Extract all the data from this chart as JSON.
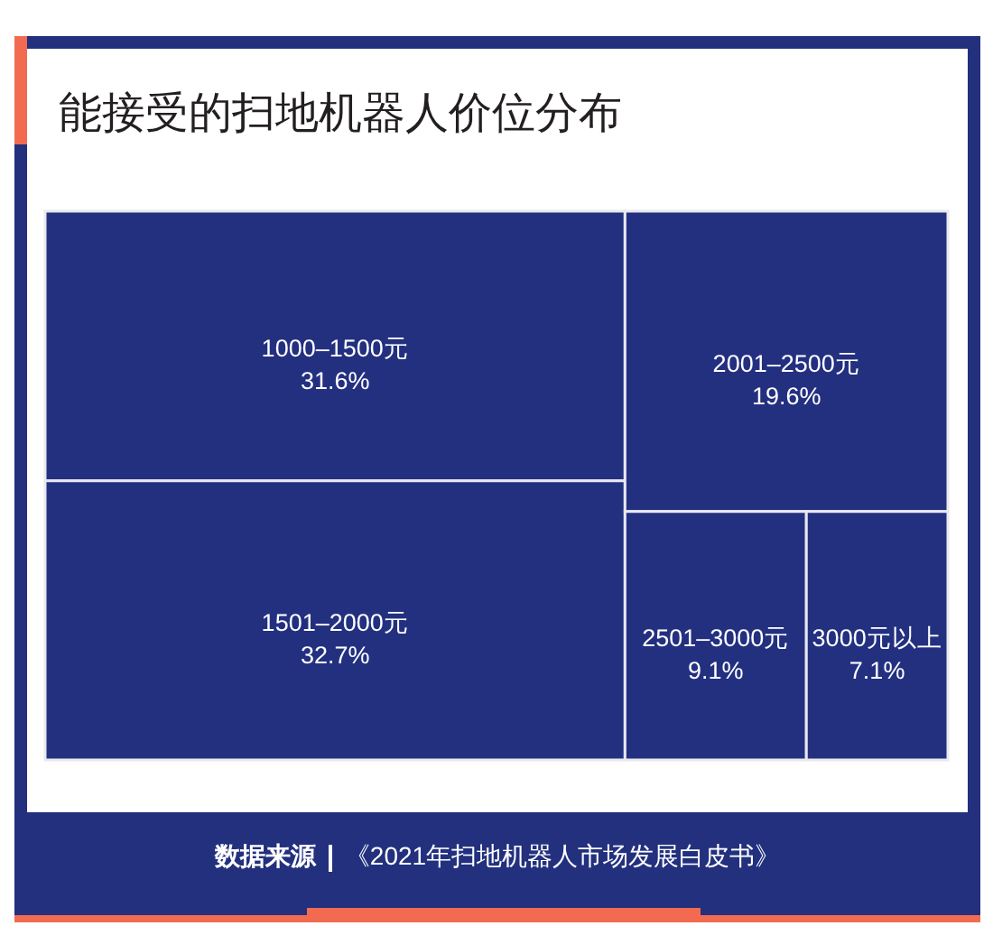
{
  "chart_data": {
    "type": "other",
    "title": "能接受的扫地机器人价位分布",
    "categories": [
      "1000–1500元",
      "1501–2000元",
      "2001–2500元",
      "2501–3000元",
      "3000元以上"
    ],
    "values": [
      31.6,
      32.7,
      19.6,
      9.1,
      7.1
    ],
    "value_labels": [
      "31.6%",
      "32.7%",
      "19.6%",
      "9.1%",
      "7.1%"
    ],
    "color": "#233080",
    "annotations": [
      "数据来源",
      "《2021年扫地机器人市场发展白皮书》"
    ]
  }
}
